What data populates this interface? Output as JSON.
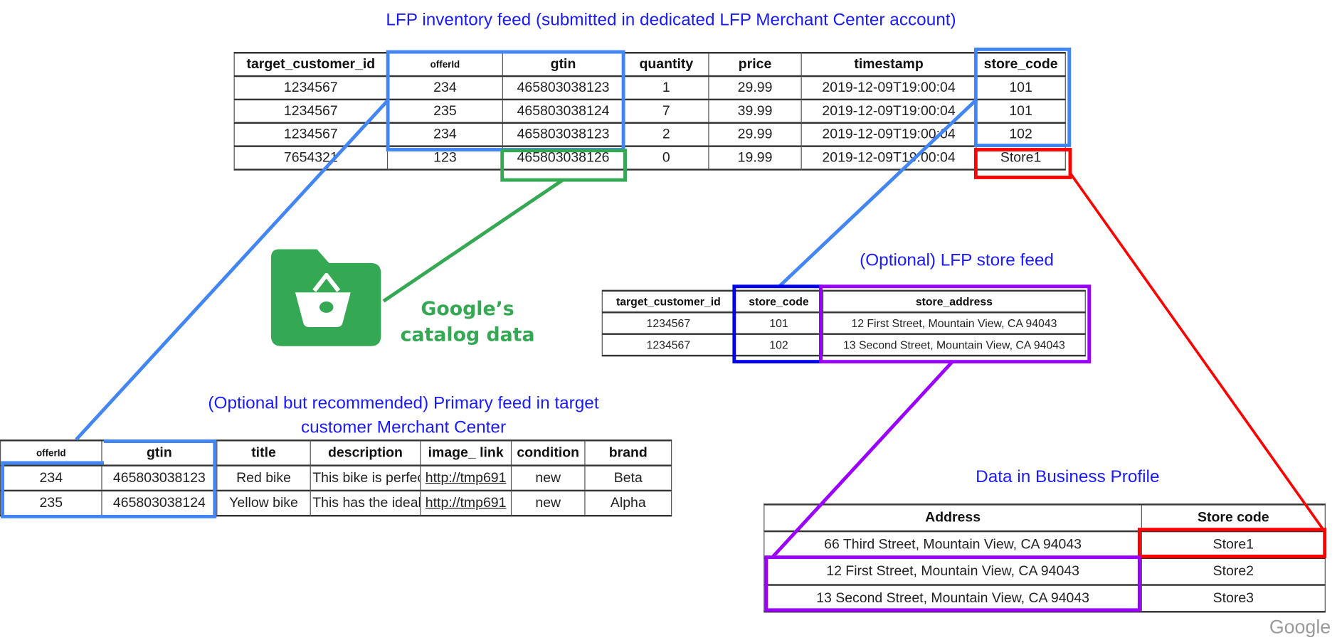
{
  "titles": {
    "inventory_feed": "LFP inventory feed (submitted in dedicated LFP Merchant Center account)",
    "store_feed": "(Optional) LFP store feed",
    "primary_feed_line1": "(Optional but recommended) Primary feed in target",
    "primary_feed_line2": "customer Merchant Center",
    "business_profile": "Data in Business Profile"
  },
  "catalog": {
    "icon": "shopping-basket-folder-icon",
    "line1": "Google’s",
    "line2": "catalog data"
  },
  "logo": "Google",
  "colors": {
    "title_blue": "#1a1aff",
    "link_blue": "#4285f4",
    "dark_blue": "#0000ee",
    "green": "#34a853",
    "red": "#ff0000",
    "purple": "#9900ff"
  },
  "inventory_table": {
    "headers": [
      "target_customer_id",
      "offerId",
      "gtin",
      "quantity",
      "price",
      "timestamp",
      "store_code"
    ],
    "rows": [
      [
        "1234567",
        "234",
        "465803038123",
        "1",
        "29.99",
        "2019-12-09T19:00:04",
        "101"
      ],
      [
        "1234567",
        "235",
        "465803038124",
        "7",
        "39.99",
        "2019-12-09T19:00:04",
        "101"
      ],
      [
        "1234567",
        "234",
        "465803038123",
        "2",
        "29.99",
        "2019-12-09T19:00:04",
        "102"
      ],
      [
        "7654321",
        "123",
        "465803038126",
        "0",
        "19.99",
        "2019-12-09T19:00:04",
        "Store1"
      ]
    ]
  },
  "store_table": {
    "headers": [
      "target_customer_id",
      "store_code",
      "store_address"
    ],
    "rows": [
      [
        "1234567",
        "101",
        "12 First Street, Mountain View, CA 94043"
      ],
      [
        "1234567",
        "102",
        "13 Second Street, Mountain View, CA 94043"
      ]
    ]
  },
  "primary_table": {
    "headers": [
      "offerId",
      "gtin",
      "title",
      "description",
      "image_ link",
      "condition",
      "brand"
    ],
    "rows": [
      [
        "234",
        "465803038123",
        "Red bike",
        "This bike is perfect",
        "http://tmp691",
        "new",
        "Beta"
      ],
      [
        "235",
        "465803038124",
        "Yellow bike",
        "This has the ideal",
        "http://tmp691",
        "new",
        "Alpha"
      ]
    ]
  },
  "business_table": {
    "headers": [
      "Address",
      "Store code"
    ],
    "rows": [
      [
        "66 Third Street, Mountain View, CA 94043",
        "Store1"
      ],
      [
        "12 First Street, Mountain View, CA 94043",
        "Store2"
      ],
      [
        "13 Second Street, Mountain View, CA 94043",
        "Store3"
      ]
    ]
  }
}
